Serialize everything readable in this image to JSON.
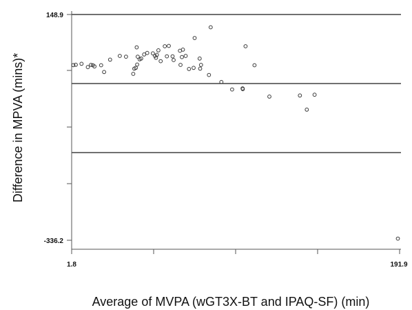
{
  "chart_data": {
    "type": "scatter",
    "title": "",
    "xlabel": "Average of MVPA (wGT3X-BT and IPAQ-SF) (min)",
    "ylabel": "Difference in MPVA (mins)*",
    "xlim": [
      1.8,
      191.9
    ],
    "ylim": [
      -336.2,
      148.9
    ],
    "x_tick_labels": [
      "1.8",
      "191.9"
    ],
    "y_tick_labels": [
      "148.9",
      "-336.2"
    ],
    "reference_lines": [
      {
        "name": "upper limit of agreement",
        "y": 0
      },
      {
        "name": "mean difference",
        "y": -0.3
      },
      {
        "name": "lower limit of agreement",
        "y": -1
      }
    ],
    "points_note": "Points given as [x, y] where x and y are in the axis units scaled between min and max values.",
    "points": [
      [
        2.8,
        4.95
      ],
      [
        4.2,
        5.03
      ],
      [
        7.5,
        5.3
      ],
      [
        11.2,
        4.4
      ],
      [
        13.0,
        5.0
      ],
      [
        14.1,
        4.9
      ],
      [
        15.0,
        4.6
      ],
      [
        18.9,
        4.9
      ],
      [
        20.6,
        3.1
      ],
      [
        24.1,
        6.4
      ],
      [
        29.7,
        7.4
      ],
      [
        33.3,
        7.2
      ],
      [
        37.5,
        2.6
      ],
      [
        38.1,
        4.0
      ],
      [
        39.0,
        4.2
      ],
      [
        39.5,
        9.7
      ],
      [
        40.1,
        7.2
      ],
      [
        39.8,
        5.1
      ],
      [
        41.2,
        6.5
      ],
      [
        42.1,
        6.7
      ],
      [
        43.8,
        7.8
      ],
      [
        45.6,
        8.2
      ],
      [
        48.9,
        8.1
      ],
      [
        50.1,
        7.4
      ],
      [
        50.7,
        6.9
      ],
      [
        51.2,
        7.7
      ],
      [
        52.1,
        8.9
      ],
      [
        53.4,
        6.0
      ],
      [
        55.8,
        10.0
      ],
      [
        57.0,
        7.3
      ],
      [
        58.1,
        10.1
      ],
      [
        60.3,
        7.3
      ],
      [
        60.9,
        6.3
      ],
      [
        64.6,
        8.8
      ],
      [
        64.9,
        5.0
      ],
      [
        65.7,
        7.1
      ],
      [
        66.3,
        9.1
      ],
      [
        67.9,
        7.4
      ],
      [
        69.8,
        3.9
      ],
      [
        72.5,
        4.2
      ],
      [
        73.1,
        12.2
      ],
      [
        76.3,
        4.0
      ],
      [
        76.8,
        5.0
      ],
      [
        76.0,
        6.7
      ],
      [
        81.4,
        2.3
      ],
      [
        82.4,
        15.1
      ],
      [
        88.6,
        0.4
      ],
      [
        94.8,
        -1.6
      ],
      [
        101.0,
        -1.5
      ],
      [
        100.9,
        -1.3
      ],
      [
        102.6,
        10.0
      ],
      [
        107.8,
        4.9
      ],
      [
        116.4,
        -3.5
      ],
      [
        134.1,
        -3.2
      ],
      [
        138.1,
        -7.0
      ],
      [
        142.6,
        -3.0
      ],
      [
        190.9,
        -41.6
      ]
    ]
  }
}
